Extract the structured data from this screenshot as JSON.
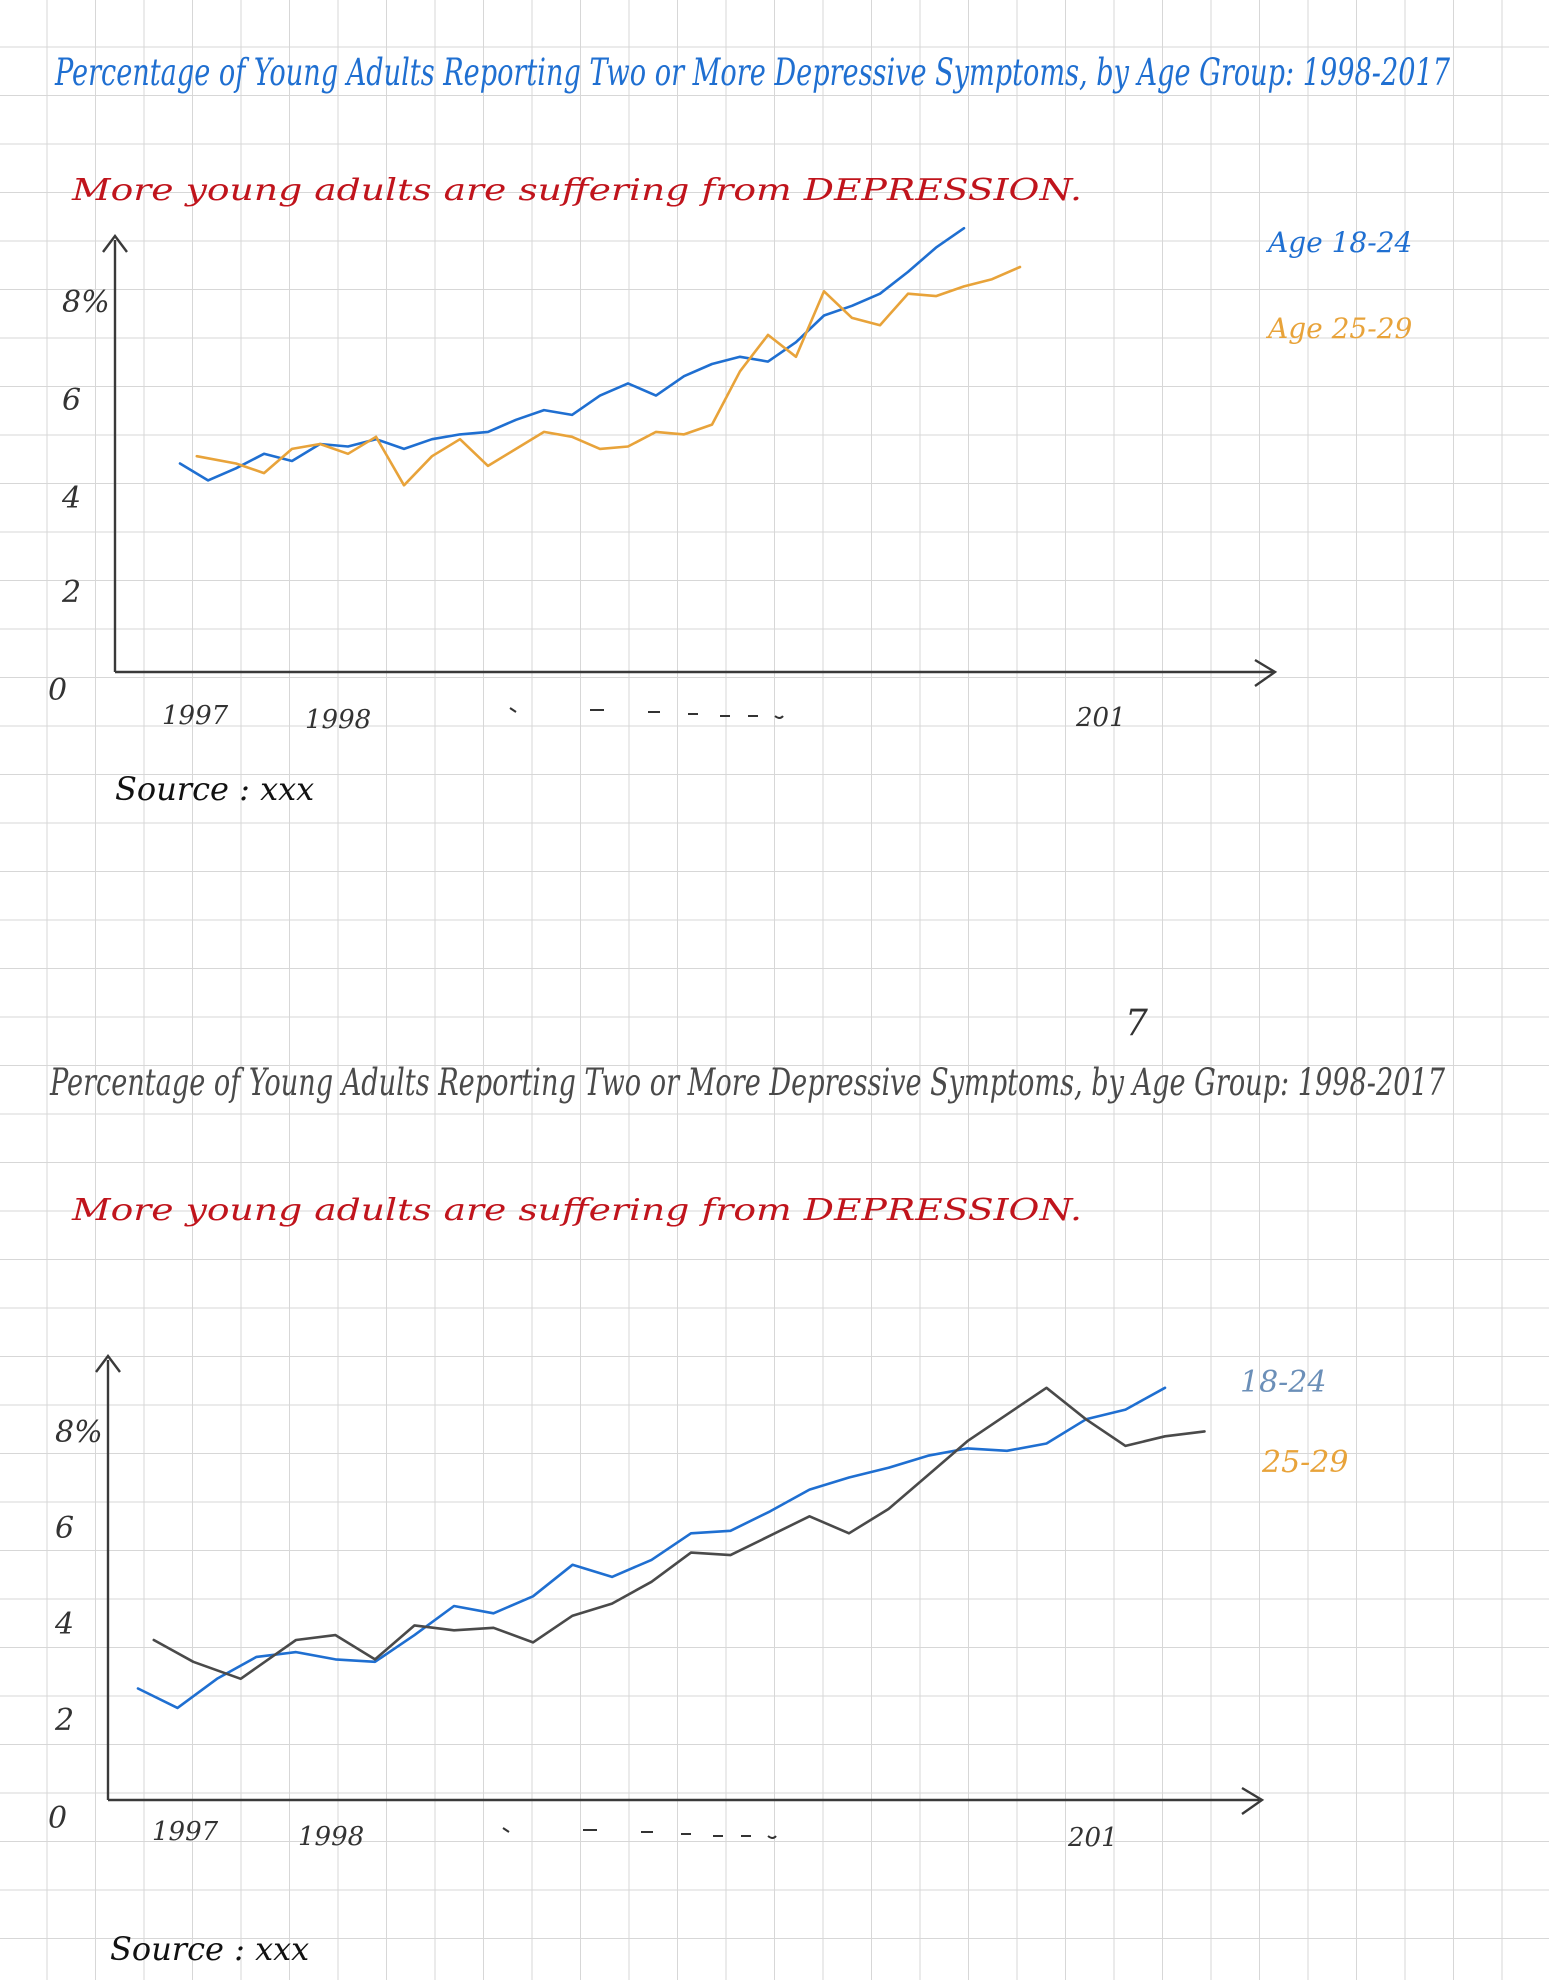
{
  "chart_data": [
    {
      "type": "line",
      "title": "Percentage of Young Adults Reporting Two or More Depressive Symptoms, by Age Group: 1998-2017",
      "subtitle": "More young adults are suffering from DEPRESSION.",
      "source": "Source : xxx",
      "yticks": [
        "0",
        "2",
        "4",
        "6",
        "8%"
      ],
      "xticks": [
        "1997",
        "1998",
        "201"
      ],
      "ylim": [
        0,
        9
      ],
      "grid": true,
      "legend_position": "right",
      "series": [
        {
          "name": "Age 18-24",
          "color": "#1f6fd1",
          "values": [
            [
              0,
              4.3
            ],
            [
              0.5,
              3.95
            ],
            [
              1,
              4.2
            ],
            [
              1.5,
              4.5
            ],
            [
              2,
              4.35
            ],
            [
              2.5,
              4.7
            ],
            [
              3,
              4.65
            ],
            [
              3.5,
              4.8
            ],
            [
              4,
              4.6
            ],
            [
              4.5,
              4.8
            ],
            [
              5,
              4.9
            ],
            [
              5.5,
              4.95
            ],
            [
              6,
              5.2
            ],
            [
              6.5,
              5.4
            ],
            [
              7,
              5.3
            ],
            [
              7.5,
              5.7
            ],
            [
              8,
              5.95
            ],
            [
              8.5,
              5.7
            ],
            [
              9,
              6.1
            ],
            [
              9.5,
              6.35
            ],
            [
              10,
              6.5
            ],
            [
              10.5,
              6.4
            ],
            [
              11,
              6.8
            ],
            [
              11.5,
              7.35
            ],
            [
              12,
              7.55
            ],
            [
              12.5,
              7.8
            ],
            [
              13,
              8.25
            ],
            [
              13.5,
              8.75
            ],
            [
              14,
              9.15
            ]
          ]
        },
        {
          "name": "Age 25-29",
          "color": "#e8a33a",
          "values": [
            [
              0.3,
              4.45
            ],
            [
              1,
              4.3
            ],
            [
              1.5,
              4.1
            ],
            [
              2,
              4.6
            ],
            [
              2.5,
              4.7
            ],
            [
              3,
              4.5
            ],
            [
              3.5,
              4.85
            ],
            [
              4,
              3.85
            ],
            [
              4.5,
              4.45
            ],
            [
              5,
              4.8
            ],
            [
              5.5,
              4.25
            ],
            [
              6,
              4.6
            ],
            [
              6.5,
              4.95
            ],
            [
              7,
              4.85
            ],
            [
              7.5,
              4.6
            ],
            [
              8,
              4.65
            ],
            [
              8.5,
              4.95
            ],
            [
              9,
              4.9
            ],
            [
              9.5,
              5.1
            ],
            [
              10,
              6.2
            ],
            [
              10.5,
              6.95
            ],
            [
              11,
              6.5
            ],
            [
              11.5,
              7.85
            ],
            [
              12,
              7.3
            ],
            [
              12.5,
              7.15
            ],
            [
              13,
              7.8
            ],
            [
              13.5,
              7.75
            ],
            [
              14,
              7.95
            ],
            [
              14.5,
              8.1
            ],
            [
              15,
              8.35
            ]
          ]
        }
      ]
    },
    {
      "type": "line",
      "title": "Percentage of Young Adults Reporting Two or More Depressive Symptoms, by Age Group: 1998-2017",
      "subtitle": "More young adults are suffering from DEPRESSION.",
      "source": "Source : xxx",
      "yticks": [
        "0",
        "2",
        "4",
        "6",
        "8%"
      ],
      "xticks": [
        "1997",
        "1998",
        "201"
      ],
      "ylim": [
        0,
        9
      ],
      "grid": true,
      "legend_position": "right",
      "series": [
        {
          "name": "18-24",
          "color": "#1f6fd1",
          "values": [
            [
              0,
              2.3
            ],
            [
              0.5,
              1.9
            ],
            [
              1,
              2.5
            ],
            [
              1.5,
              2.95
            ],
            [
              2,
              3.05
            ],
            [
              2.5,
              2.9
            ],
            [
              3,
              2.85
            ],
            [
              3.5,
              3.4
            ],
            [
              4,
              4.0
            ],
            [
              4.5,
              3.85
            ],
            [
              5,
              4.2
            ],
            [
              5.5,
              4.85
            ],
            [
              6,
              4.6
            ],
            [
              6.5,
              4.95
            ],
            [
              7,
              5.5
            ],
            [
              7.5,
              5.55
            ],
            [
              8,
              5.95
            ],
            [
              8.5,
              6.4
            ],
            [
              9,
              6.65
            ],
            [
              9.5,
              6.85
            ],
            [
              10,
              7.1
            ],
            [
              10.5,
              7.25
            ],
            [
              11,
              7.2
            ],
            [
              11.5,
              7.35
            ],
            [
              12,
              7.85
            ],
            [
              12.5,
              8.05
            ],
            [
              13,
              8.5
            ]
          ]
        },
        {
          "name": "25-29",
          "color": "#4a4a4a",
          "values": [
            [
              0.2,
              3.3
            ],
            [
              0.7,
              2.85
            ],
            [
              1.3,
              2.5
            ],
            [
              2,
              3.3
            ],
            [
              2.5,
              3.4
            ],
            [
              3,
              2.9
            ],
            [
              3.5,
              3.6
            ],
            [
              4,
              3.5
            ],
            [
              4.5,
              3.55
            ],
            [
              5,
              3.25
            ],
            [
              5.5,
              3.8
            ],
            [
              6,
              4.05
            ],
            [
              6.5,
              4.5
            ],
            [
              7,
              5.1
            ],
            [
              7.5,
              5.05
            ],
            [
              8,
              5.45
            ],
            [
              8.5,
              5.85
            ],
            [
              9,
              5.5
            ],
            [
              9.5,
              6.0
            ],
            [
              10,
              6.7
            ],
            [
              10.5,
              7.4
            ],
            [
              11,
              7.95
            ],
            [
              11.5,
              8.5
            ],
            [
              12,
              7.85
            ],
            [
              12.5,
              7.3
            ],
            [
              13,
              7.5
            ],
            [
              13.5,
              7.6
            ]
          ]
        }
      ]
    }
  ]
}
